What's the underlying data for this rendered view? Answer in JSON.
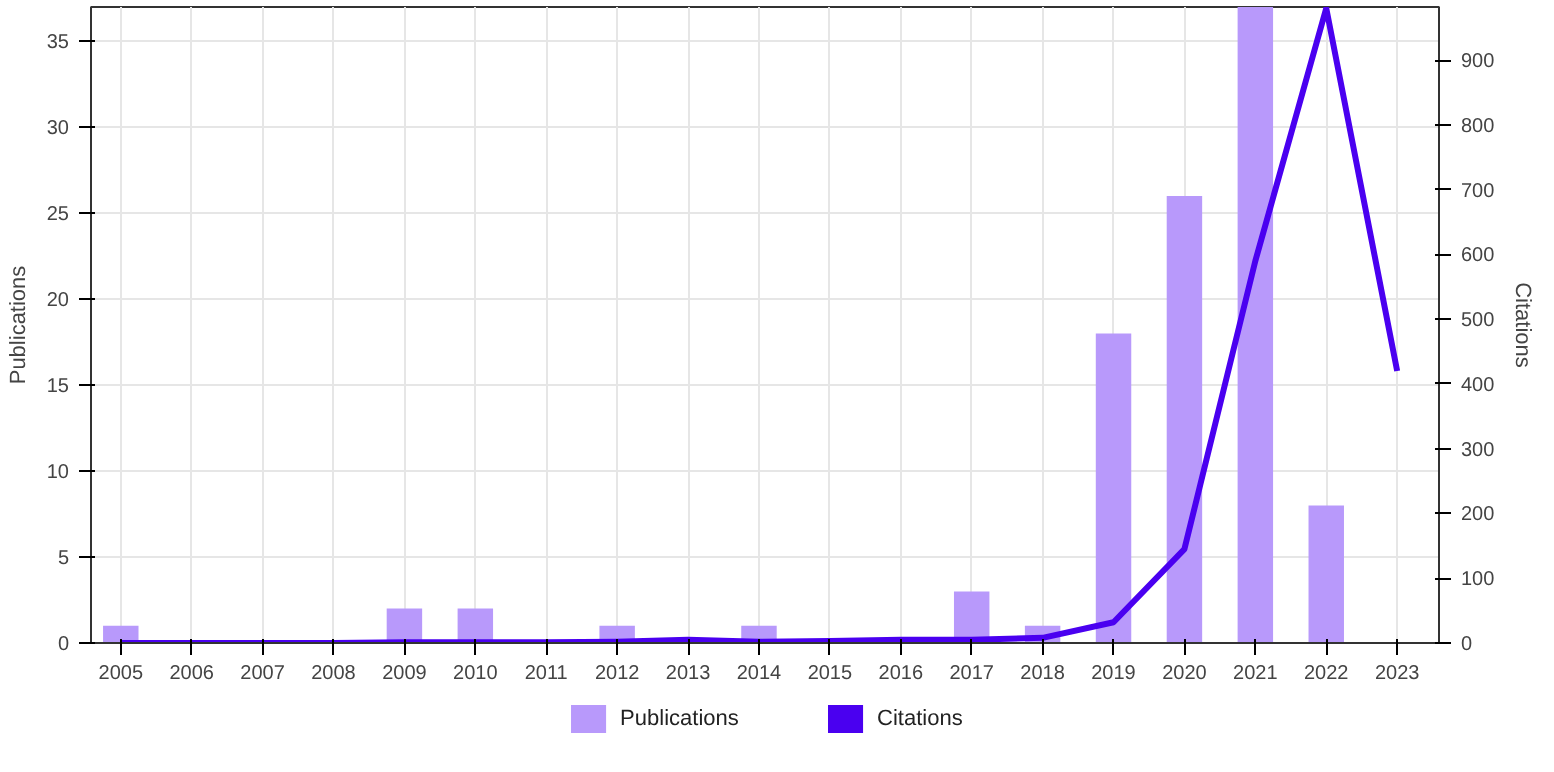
{
  "chart_data": {
    "type": "bar",
    "ylabel": "Publications",
    "y2label": "Citations",
    "categories": [
      "2005",
      "2006",
      "2007",
      "2008",
      "2009",
      "2010",
      "2011",
      "2012",
      "2013",
      "2014",
      "2015",
      "2016",
      "2017",
      "2018",
      "2019",
      "2020",
      "2021",
      "2022",
      "2023"
    ],
    "series": [
      {
        "name": "Publications",
        "color": "#b899fb",
        "values": [
          1,
          0,
          0,
          0,
          2,
          2,
          0,
          1,
          0,
          1,
          0,
          0,
          3,
          1,
          18,
          26,
          37,
          8,
          null
        ]
      },
      {
        "name": "Citations",
        "type": "line",
        "axis": "y2",
        "color": "#4a00f0",
        "values": [
          0,
          0,
          0,
          0,
          1,
          1,
          1,
          2,
          5,
          2,
          3,
          5,
          5,
          8,
          32,
          145,
          590,
          980,
          420
        ]
      }
    ],
    "ylim": [
      0,
      37
    ],
    "yticks": [
      0,
      5,
      10,
      15,
      20,
      25,
      30,
      35
    ],
    "y2lim": [
      0,
      982
    ],
    "y2ticks": [
      0,
      100,
      200,
      300,
      400,
      500,
      600,
      700,
      800,
      900
    ],
    "grid": true,
    "legend": "bottom"
  }
}
